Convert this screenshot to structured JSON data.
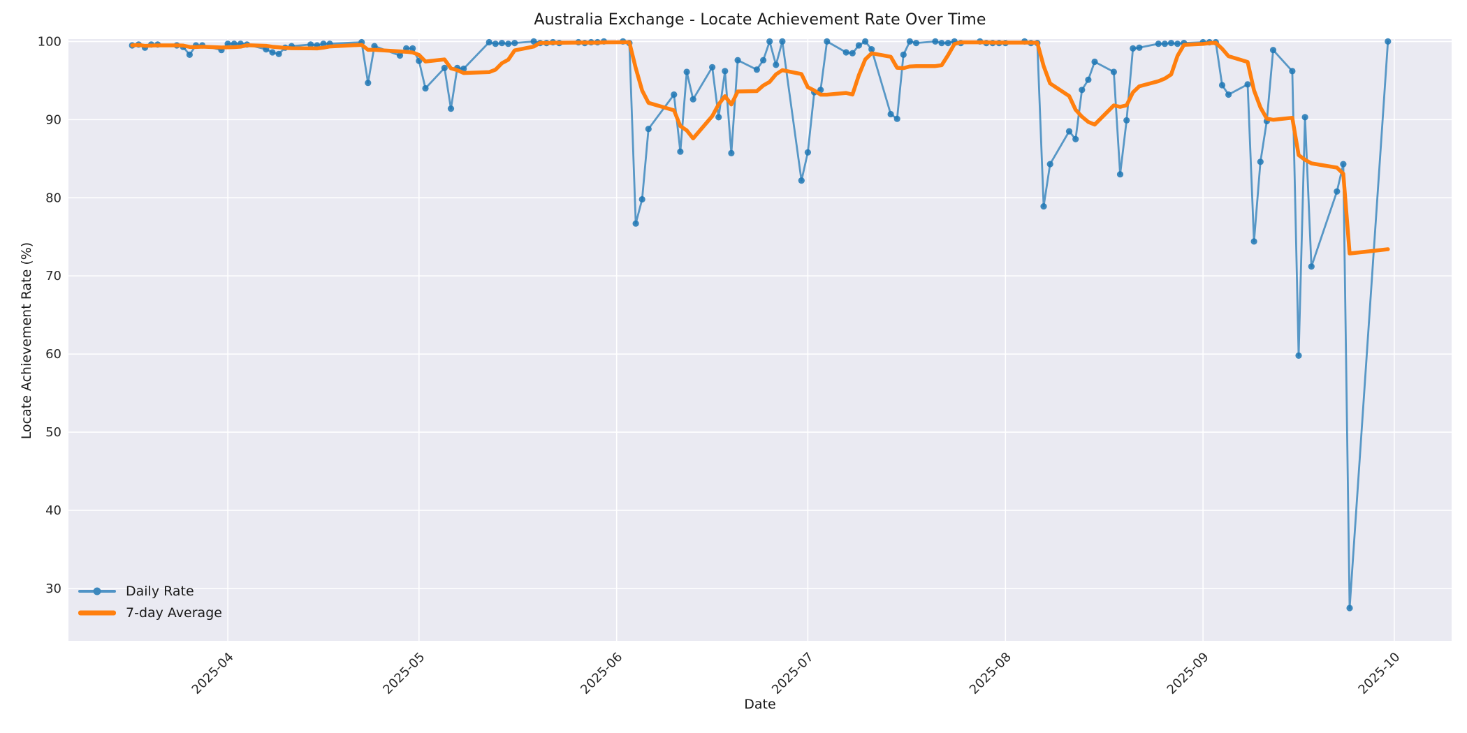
{
  "figure": {
    "title": "Australia Exchange - Locate Achievement Rate Over Time",
    "xlabel": "Date",
    "ylabel": "Locate Achievement Rate (%)"
  },
  "legend": {
    "position": "lower-left",
    "items": [
      {
        "label": "Daily Rate",
        "swatch": "blue-line-with-dot-marker"
      },
      {
        "label": "7-day Average",
        "swatch": "orange-thick-line"
      }
    ]
  },
  "colors": {
    "daily_line": "#1f77b4",
    "avg_line": "#ff7f0e",
    "plot_background": "#eaeaf2",
    "gridline": "#ffffff",
    "text": "#262626",
    "figure_background": "#ffffff"
  },
  "chart_data": {
    "type": "line",
    "title": "Australia Exchange - Locate Achievement Rate Over Time",
    "xlabel": "Date",
    "ylabel": "Locate Achievement Rate (%)",
    "grid": true,
    "legend_position": "lower left",
    "ylim": [
      23.3,
      100.3
    ],
    "xlim": [
      "2025-03-07",
      "2025-10-10"
    ],
    "y_ticks": [
      30,
      40,
      50,
      60,
      70,
      80,
      90,
      100
    ],
    "x_ticks": [
      {
        "label": "2025-04",
        "date": "2025-04-01"
      },
      {
        "label": "2025-05",
        "date": "2025-05-01"
      },
      {
        "label": "2025-06",
        "date": "2025-06-01"
      },
      {
        "label": "2025-07",
        "date": "2025-07-01"
      },
      {
        "label": "2025-08",
        "date": "2025-08-01"
      },
      {
        "label": "2025-09",
        "date": "2025-09-01"
      },
      {
        "label": "2025-10",
        "date": "2025-10-01"
      }
    ],
    "series": [
      {
        "name": "Daily Rate",
        "style": "line-with-markers",
        "color": "#1f77b4",
        "dates": [
          "2025-03-17",
          "2025-03-18",
          "2025-03-19",
          "2025-03-20",
          "2025-03-21",
          "2025-03-24",
          "2025-03-25",
          "2025-03-26",
          "2025-03-27",
          "2025-03-28",
          "2025-03-31",
          "2025-04-01",
          "2025-04-02",
          "2025-04-03",
          "2025-04-04",
          "2025-04-07",
          "2025-04-08",
          "2025-04-09",
          "2025-04-10",
          "2025-04-11",
          "2025-04-14",
          "2025-04-15",
          "2025-04-16",
          "2025-04-17",
          "2025-04-22",
          "2025-04-23",
          "2025-04-24",
          "2025-04-28",
          "2025-04-29",
          "2025-04-30",
          "2025-05-01",
          "2025-05-02",
          "2025-05-05",
          "2025-05-06",
          "2025-05-07",
          "2025-05-08",
          "2025-05-12",
          "2025-05-13",
          "2025-05-14",
          "2025-05-15",
          "2025-05-16",
          "2025-05-19",
          "2025-05-20",
          "2025-05-21",
          "2025-05-22",
          "2025-05-23",
          "2025-05-26",
          "2025-05-27",
          "2025-05-28",
          "2025-05-29",
          "2025-05-30",
          "2025-06-02",
          "2025-06-03",
          "2025-06-04",
          "2025-06-05",
          "2025-06-06",
          "2025-06-10",
          "2025-06-11",
          "2025-06-12",
          "2025-06-13",
          "2025-06-16",
          "2025-06-17",
          "2025-06-18",
          "2025-06-19",
          "2025-06-20",
          "2025-06-23",
          "2025-06-24",
          "2025-06-25",
          "2025-06-26",
          "2025-06-27",
          "2025-06-30",
          "2025-07-01",
          "2025-07-02",
          "2025-07-03",
          "2025-07-04",
          "2025-07-07",
          "2025-07-08",
          "2025-07-09",
          "2025-07-10",
          "2025-07-11",
          "2025-07-14",
          "2025-07-15",
          "2025-07-16",
          "2025-07-17",
          "2025-07-18",
          "2025-07-21",
          "2025-07-22",
          "2025-07-23",
          "2025-07-24",
          "2025-07-25",
          "2025-07-28",
          "2025-07-29",
          "2025-07-30",
          "2025-07-31",
          "2025-08-01",
          "2025-08-04",
          "2025-08-05",
          "2025-08-06",
          "2025-08-07",
          "2025-08-08",
          "2025-08-11",
          "2025-08-12",
          "2025-08-13",
          "2025-08-14",
          "2025-08-15",
          "2025-08-18",
          "2025-08-19",
          "2025-08-20",
          "2025-08-21",
          "2025-08-22",
          "2025-08-25",
          "2025-08-26",
          "2025-08-27",
          "2025-08-28",
          "2025-08-29",
          "2025-09-01",
          "2025-09-02",
          "2025-09-03",
          "2025-09-04",
          "2025-09-05",
          "2025-09-08",
          "2025-09-09",
          "2025-09-10",
          "2025-09-11",
          "2025-09-12",
          "2025-09-15",
          "2025-09-16",
          "2025-09-17",
          "2025-09-18",
          "2025-09-22",
          "2025-09-23",
          "2025-09-24",
          "2025-09-30"
        ],
        "values": [
          99.5,
          99.6,
          99.2,
          99.6,
          99.6,
          99.5,
          99.3,
          98.3,
          99.5,
          99.5,
          98.9,
          99.7,
          99.7,
          99.7,
          99.6,
          99.0,
          98.6,
          98.4,
          99.2,
          99.4,
          99.6,
          99.5,
          99.7,
          99.7,
          99.9,
          94.7,
          99.4,
          98.2,
          99.1,
          99.1,
          97.5,
          94.0,
          96.6,
          91.4,
          96.6,
          96.5,
          99.9,
          99.7,
          99.8,
          99.7,
          99.8,
          100.0,
          99.8,
          99.8,
          99.9,
          99.8,
          99.9,
          99.8,
          99.9,
          99.9,
          100.0,
          100.0,
          99.8,
          76.7,
          79.8,
          88.8,
          93.2,
          85.9,
          96.1,
          92.6,
          96.7,
          90.3,
          96.2,
          85.7,
          97.6,
          96.4,
          97.6,
          100.0,
          97.0,
          100.0,
          82.2,
          85.8,
          93.5,
          93.8,
          100.0,
          98.6,
          98.5,
          99.5,
          100.0,
          99.0,
          90.7,
          90.1,
          98.3,
          100.0,
          99.8,
          100.0,
          99.8,
          99.8,
          100.0,
          99.8,
          100.0,
          99.8,
          99.8,
          99.8,
          99.8,
          100.0,
          99.8,
          99.8,
          78.9,
          84.3,
          88.5,
          87.5,
          93.8,
          95.1,
          97.4,
          96.1,
          83.0,
          89.9,
          99.1,
          99.2,
          99.7,
          99.7,
          99.8,
          99.7,
          99.8,
          99.9,
          99.9,
          99.9,
          94.4,
          93.2,
          94.5,
          74.4,
          84.6,
          89.8,
          98.9,
          96.2,
          59.8,
          90.3,
          71.2,
          80.8,
          84.3,
          27.5,
          100.0
        ]
      },
      {
        "name": "7-day Average",
        "style": "thick-line",
        "color": "#ff7f0e",
        "derived_from": "Daily Rate",
        "derivation": "rolling mean over last 7 observations, min_periods 1"
      }
    ]
  }
}
